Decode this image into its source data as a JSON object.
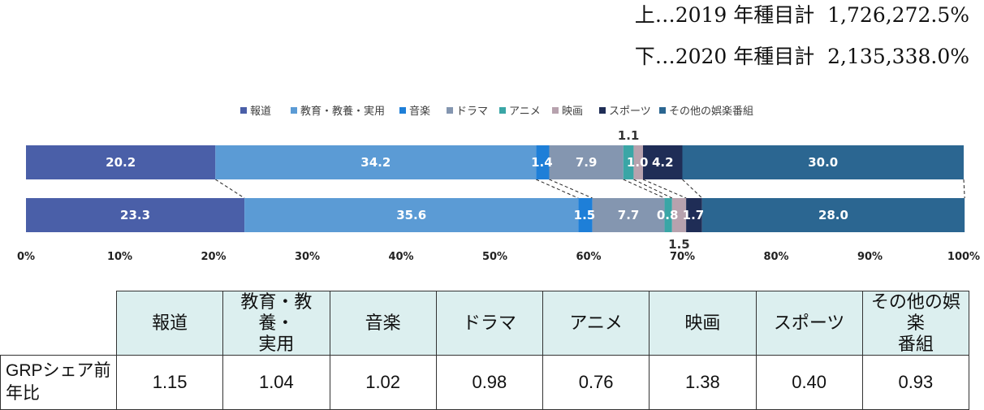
{
  "notes": {
    "y2019": "上…2019 年種目計  1,726,272.5%",
    "y2020": "下…2020 年種目計  2,135,338.0%"
  },
  "chart_data": {
    "type": "bar",
    "orientation": "horizontal",
    "stacked": true,
    "categories": [
      "報道",
      "教育・教養・実用",
      "音楽",
      "ドラマ",
      "アニメ",
      "映画",
      "スポーツ",
      "その他の娯楽番組"
    ],
    "colors": [
      "#4a5fa8",
      "#5b9bd5",
      "#1e7fd8",
      "#8496b0",
      "#3aa6a6",
      "#b7a2ae",
      "#1f2d56",
      "#2b6691"
    ],
    "series": [
      {
        "values": [
          20.2,
          34.2,
          1.4,
          7.9,
          1.1,
          1.0,
          4.2,
          30.0
        ],
        "labels": [
          "20.2",
          "34.2",
          "1.4",
          "7.9",
          "1.1",
          "1.0",
          "4.2",
          "30.0"
        ]
      },
      {
        "values": [
          23.3,
          35.6,
          1.5,
          7.7,
          0.8,
          1.5,
          1.7,
          28.0
        ],
        "labels": [
          "23.3",
          "35.6",
          "1.5",
          "7.7",
          "0.8",
          "1.5",
          "1.7",
          "28.0"
        ]
      }
    ],
    "xlim": [
      0,
      100
    ],
    "xticks": [
      "0%",
      "10%",
      "20%",
      "30%",
      "40%",
      "50%",
      "60%",
      "70%",
      "80%",
      "90%",
      "100%"
    ],
    "legend_position": "top",
    "series_lines": true
  },
  "table": {
    "corner": "",
    "headers": [
      "報道",
      "教育・教養・\n実用",
      "音楽",
      "ドラマ",
      "アニメ",
      "映画",
      "スポーツ",
      "その他の娯楽\n番組"
    ],
    "row_label": "GRPシェア前\n年比",
    "values": [
      "1.15",
      "1.04",
      "1.02",
      "0.98",
      "0.76",
      "1.38",
      "0.40",
      "0.93"
    ]
  }
}
